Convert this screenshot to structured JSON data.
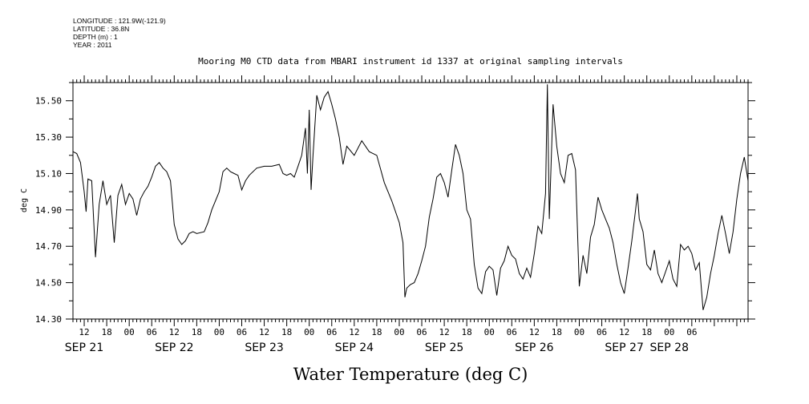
{
  "metadata": {
    "longitude": "LONGITUDE : 121.9W(-121.9)",
    "latitude": "LATITUDE : 36.8N",
    "depth": "DEPTH (m) : 1",
    "year": "YEAR : 2011"
  },
  "chart_data": {
    "type": "line",
    "title": "Mooring M0 CTD data from MBARI instrument id 1337 at original sampling intervals",
    "xlabel": "Water Temperature (deg C)",
    "ylabel": "deg C",
    "xlim": [
      "2011-09-21T09:00",
      "2011-09-28T21:00"
    ],
    "ylim": [
      14.3,
      15.6
    ],
    "y_ticks": [
      "14.30",
      "14.50",
      "14.70",
      "14.90",
      "15.10",
      "15.30",
      "15.50"
    ],
    "x_hour_ticks": [
      {
        "t": "2011-09-21T12:00",
        "label": "12"
      },
      {
        "t": "2011-09-21T18:00",
        "label": "18"
      },
      {
        "t": "2011-09-22T00:00",
        "label": "00"
      },
      {
        "t": "2011-09-22T06:00",
        "label": "06"
      },
      {
        "t": "2011-09-22T12:00",
        "label": "12"
      },
      {
        "t": "2011-09-22T18:00",
        "label": "18"
      },
      {
        "t": "2011-09-23T00:00",
        "label": "00"
      },
      {
        "t": "2011-09-23T06:00",
        "label": "06"
      },
      {
        "t": "2011-09-23T12:00",
        "label": "12"
      },
      {
        "t": "2011-09-23T18:00",
        "label": "18"
      },
      {
        "t": "2011-09-24T00:00",
        "label": "00"
      },
      {
        "t": "2011-09-24T06:00",
        "label": "06"
      },
      {
        "t": "2011-09-24T12:00",
        "label": "12"
      },
      {
        "t": "2011-09-24T18:00",
        "label": "18"
      },
      {
        "t": "2011-09-25T00:00",
        "label": "00"
      },
      {
        "t": "2011-09-25T06:00",
        "label": "06"
      },
      {
        "t": "2011-09-25T12:00",
        "label": "12"
      },
      {
        "t": "2011-09-25T18:00",
        "label": "18"
      },
      {
        "t": "2011-09-26T00:00",
        "label": "00"
      },
      {
        "t": "2011-09-26T06:00",
        "label": "06"
      },
      {
        "t": "2011-09-26T12:00",
        "label": "12"
      },
      {
        "t": "2011-09-26T18:00",
        "label": "18"
      },
      {
        "t": "2011-09-27T00:00",
        "label": "00"
      },
      {
        "t": "2011-09-27T06:00",
        "label": "06"
      },
      {
        "t": "2011-09-27T12:00",
        "label": "12"
      },
      {
        "t": "2011-09-27T18:00",
        "label": "18"
      },
      {
        "t": "2011-09-28T00:00",
        "label": "00"
      },
      {
        "t": "2011-09-28T06:00",
        "label": "06"
      }
    ],
    "x_day_labels": [
      {
        "t": "2011-09-21T12:00",
        "label": "SEP 21"
      },
      {
        "t": "2011-09-22T12:00",
        "label": "SEP 22"
      },
      {
        "t": "2011-09-23T12:00",
        "label": "SEP 23"
      },
      {
        "t": "2011-09-24T12:00",
        "label": "SEP 24"
      },
      {
        "t": "2011-09-25T12:00",
        "label": "SEP 25"
      },
      {
        "t": "2011-09-26T12:00",
        "label": "SEP 26"
      },
      {
        "t": "2011-09-27T12:00",
        "label": "SEP 27"
      },
      {
        "t": "2011-09-28T00:00",
        "label": "SEP 28"
      }
    ],
    "grid": false,
    "line_color": "#000000",
    "series": [
      {
        "points": [
          [
            "2011-09-21T09:00",
            15.22
          ],
          [
            "2011-09-21T10:00",
            15.21
          ],
          [
            "2011-09-21T11:00",
            15.16
          ],
          [
            "2011-09-21T12:00",
            15.0
          ],
          [
            "2011-09-21T12:30",
            14.89
          ],
          [
            "2011-09-21T13:00",
            15.07
          ],
          [
            "2011-09-21T14:00",
            15.06
          ],
          [
            "2011-09-21T15:00",
            14.64
          ],
          [
            "2011-09-21T16:00",
            14.93
          ],
          [
            "2011-09-21T17:00",
            15.06
          ],
          [
            "2011-09-21T18:00",
            14.93
          ],
          [
            "2011-09-21T19:00",
            14.98
          ],
          [
            "2011-09-21T20:00",
            14.72
          ],
          [
            "2011-09-21T21:00",
            14.98
          ],
          [
            "2011-09-21T22:00",
            15.04
          ],
          [
            "2011-09-21T23:00",
            14.93
          ],
          [
            "2011-09-22T00:00",
            14.99
          ],
          [
            "2011-09-22T01:00",
            14.96
          ],
          [
            "2011-09-22T02:00",
            14.87
          ],
          [
            "2011-09-22T03:00",
            14.96
          ],
          [
            "2011-09-22T04:00",
            15.0
          ],
          [
            "2011-09-22T05:00",
            15.03
          ],
          [
            "2011-09-22T06:00",
            15.08
          ],
          [
            "2011-09-22T07:00",
            15.14
          ],
          [
            "2011-09-22T08:00",
            15.16
          ],
          [
            "2011-09-22T09:00",
            15.13
          ],
          [
            "2011-09-22T10:00",
            15.11
          ],
          [
            "2011-09-22T11:00",
            15.06
          ],
          [
            "2011-09-22T12:00",
            14.82
          ],
          [
            "2011-09-22T13:00",
            14.74
          ],
          [
            "2011-09-22T14:00",
            14.71
          ],
          [
            "2011-09-22T15:00",
            14.73
          ],
          [
            "2011-09-22T16:00",
            14.77
          ],
          [
            "2011-09-22T17:00",
            14.78
          ],
          [
            "2011-09-22T18:00",
            14.77
          ],
          [
            "2011-09-22T20:00",
            14.78
          ],
          [
            "2011-09-22T21:00",
            14.83
          ],
          [
            "2011-09-22T22:00",
            14.9
          ],
          [
            "2011-09-23T00:00",
            15.0
          ],
          [
            "2011-09-23T01:00",
            15.11
          ],
          [
            "2011-09-23T02:00",
            15.13
          ],
          [
            "2011-09-23T03:00",
            15.11
          ],
          [
            "2011-09-23T04:00",
            15.1
          ],
          [
            "2011-09-23T05:00",
            15.09
          ],
          [
            "2011-09-23T06:00",
            15.01
          ],
          [
            "2011-09-23T07:00",
            15.06
          ],
          [
            "2011-09-23T08:00",
            15.09
          ],
          [
            "2011-09-23T10:00",
            15.13
          ],
          [
            "2011-09-23T12:00",
            15.14
          ],
          [
            "2011-09-23T14:00",
            15.14
          ],
          [
            "2011-09-23T16:00",
            15.15
          ],
          [
            "2011-09-23T17:00",
            15.1
          ],
          [
            "2011-09-23T18:00",
            15.09
          ],
          [
            "2011-09-23T19:00",
            15.1
          ],
          [
            "2011-09-23T20:00",
            15.08
          ],
          [
            "2011-09-23T21:00",
            15.14
          ],
          [
            "2011-09-23T22:00",
            15.2
          ],
          [
            "2011-09-23T23:00",
            15.35
          ],
          [
            "2011-09-23T23:30",
            15.1
          ],
          [
            "2011-09-24T00:00",
            15.45
          ],
          [
            "2011-09-24T00:30",
            15.01
          ],
          [
            "2011-09-24T01:00",
            15.2
          ],
          [
            "2011-09-24T02:00",
            15.53
          ],
          [
            "2011-09-24T03:00",
            15.45
          ],
          [
            "2011-09-24T04:00",
            15.52
          ],
          [
            "2011-09-24T05:00",
            15.55
          ],
          [
            "2011-09-24T06:00",
            15.48
          ],
          [
            "2011-09-24T07:00",
            15.4
          ],
          [
            "2011-09-24T08:00",
            15.3
          ],
          [
            "2011-09-24T09:00",
            15.15
          ],
          [
            "2011-09-24T10:00",
            15.25
          ],
          [
            "2011-09-24T12:00",
            15.2
          ],
          [
            "2011-09-24T14:00",
            15.28
          ],
          [
            "2011-09-24T16:00",
            15.22
          ],
          [
            "2011-09-24T18:00",
            15.2
          ],
          [
            "2011-09-24T20:00",
            15.05
          ],
          [
            "2011-09-24T22:00",
            14.95
          ],
          [
            "2011-09-25T00:00",
            14.83
          ],
          [
            "2011-09-25T01:00",
            14.72
          ],
          [
            "2011-09-25T01:30",
            14.42
          ],
          [
            "2011-09-25T02:00",
            14.47
          ],
          [
            "2011-09-25T03:00",
            14.49
          ],
          [
            "2011-09-25T04:00",
            14.5
          ],
          [
            "2011-09-25T05:00",
            14.55
          ],
          [
            "2011-09-25T06:00",
            14.62
          ],
          [
            "2011-09-25T07:00",
            14.7
          ],
          [
            "2011-09-25T08:00",
            14.86
          ],
          [
            "2011-09-25T09:00",
            14.96
          ],
          [
            "2011-09-25T10:00",
            15.08
          ],
          [
            "2011-09-25T11:00",
            15.1
          ],
          [
            "2011-09-25T12:00",
            15.05
          ],
          [
            "2011-09-25T13:00",
            14.97
          ],
          [
            "2011-09-25T14:00",
            15.12
          ],
          [
            "2011-09-25T15:00",
            15.26
          ],
          [
            "2011-09-25T16:00",
            15.2
          ],
          [
            "2011-09-25T17:00",
            15.1
          ],
          [
            "2011-09-25T18:00",
            14.9
          ],
          [
            "2011-09-25T19:00",
            14.85
          ],
          [
            "2011-09-25T20:00",
            14.6
          ],
          [
            "2011-09-25T21:00",
            14.47
          ],
          [
            "2011-09-25T22:00",
            14.44
          ],
          [
            "2011-09-25T23:00",
            14.56
          ],
          [
            "2011-09-26T00:00",
            14.59
          ],
          [
            "2011-09-26T01:00",
            14.57
          ],
          [
            "2011-09-26T02:00",
            14.43
          ],
          [
            "2011-09-26T03:00",
            14.58
          ],
          [
            "2011-09-26T04:00",
            14.62
          ],
          [
            "2011-09-26T05:00",
            14.7
          ],
          [
            "2011-09-26T06:00",
            14.65
          ],
          [
            "2011-09-26T07:00",
            14.63
          ],
          [
            "2011-09-26T08:00",
            14.55
          ],
          [
            "2011-09-26T09:00",
            14.52
          ],
          [
            "2011-09-26T10:00",
            14.58
          ],
          [
            "2011-09-26T11:00",
            14.53
          ],
          [
            "2011-09-26T12:00",
            14.66
          ],
          [
            "2011-09-26T13:00",
            14.81
          ],
          [
            "2011-09-26T14:00",
            14.77
          ],
          [
            "2011-09-26T15:00",
            14.99
          ],
          [
            "2011-09-26T15:30",
            15.59
          ],
          [
            "2011-09-26T16:00",
            14.85
          ],
          [
            "2011-09-26T17:00",
            15.48
          ],
          [
            "2011-09-26T18:00",
            15.25
          ],
          [
            "2011-09-26T19:00",
            15.1
          ],
          [
            "2011-09-26T20:00",
            15.05
          ],
          [
            "2011-09-26T21:00",
            15.2
          ],
          [
            "2011-09-26T22:00",
            15.21
          ],
          [
            "2011-09-26T23:00",
            15.12
          ],
          [
            "2011-09-27T00:00",
            14.48
          ],
          [
            "2011-09-27T01:00",
            14.65
          ],
          [
            "2011-09-27T02:00",
            14.55
          ],
          [
            "2011-09-27T03:00",
            14.75
          ],
          [
            "2011-09-27T04:00",
            14.82
          ],
          [
            "2011-09-27T05:00",
            14.97
          ],
          [
            "2011-09-27T06:00",
            14.9
          ],
          [
            "2011-09-27T07:00",
            14.85
          ],
          [
            "2011-09-27T08:00",
            14.8
          ],
          [
            "2011-09-27T09:00",
            14.72
          ],
          [
            "2011-09-27T10:00",
            14.6
          ],
          [
            "2011-09-27T11:00",
            14.5
          ],
          [
            "2011-09-27T12:00",
            14.44
          ],
          [
            "2011-09-27T13:00",
            14.58
          ],
          [
            "2011-09-27T14:00",
            14.73
          ],
          [
            "2011-09-27T15:00",
            14.9
          ],
          [
            "2011-09-27T15:30",
            14.99
          ],
          [
            "2011-09-27T16:00",
            14.85
          ],
          [
            "2011-09-27T17:00",
            14.78
          ],
          [
            "2011-09-27T18:00",
            14.6
          ],
          [
            "2011-09-27T19:00",
            14.57
          ],
          [
            "2011-09-27T20:00",
            14.68
          ],
          [
            "2011-09-27T21:00",
            14.55
          ],
          [
            "2011-09-27T22:00",
            14.5
          ],
          [
            "2011-09-27T23:00",
            14.56
          ],
          [
            "2011-09-28T00:00",
            14.62
          ],
          [
            "2011-09-28T01:00",
            14.52
          ],
          [
            "2011-09-28T02:00",
            14.48
          ],
          [
            "2011-09-28T03:00",
            14.71
          ],
          [
            "2011-09-28T04:00",
            14.68
          ],
          [
            "2011-09-28T05:00",
            14.7
          ],
          [
            "2011-09-28T06:00",
            14.66
          ],
          [
            "2011-09-28T07:00",
            14.57
          ],
          [
            "2011-09-28T08:00",
            14.61
          ],
          [
            "2011-09-28T09:00",
            14.35
          ],
          [
            "2011-09-28T10:00",
            14.42
          ],
          [
            "2011-09-28T11:00",
            14.55
          ],
          [
            "2011-09-28T12:00",
            14.65
          ],
          [
            "2011-09-28T13:00",
            14.77
          ],
          [
            "2011-09-28T14:00",
            14.87
          ],
          [
            "2011-09-28T15:00",
            14.77
          ],
          [
            "2011-09-28T16:00",
            14.66
          ],
          [
            "2011-09-28T17:00",
            14.78
          ],
          [
            "2011-09-28T18:00",
            14.96
          ],
          [
            "2011-09-28T19:00",
            15.1
          ],
          [
            "2011-09-28T20:00",
            15.19
          ],
          [
            "2011-09-28T21:00",
            15.06
          ]
        ]
      }
    ]
  }
}
